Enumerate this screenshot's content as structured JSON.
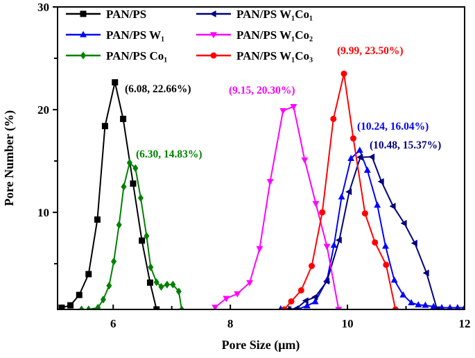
{
  "chart_data": {
    "type": "line",
    "xlabel": "Pore Size (μm)",
    "ylabel": "Pore Number (%)",
    "xlim": [
      5.05,
      12
    ],
    "ylim": [
      0.55,
      30
    ],
    "xticks": [
      6,
      8,
      10,
      12
    ],
    "xminor": [
      7,
      9,
      11
    ],
    "yticks": [
      10,
      20,
      30
    ],
    "yminor": [
      5,
      15,
      25
    ],
    "grid": false,
    "legend_placement": "top-left",
    "series": [
      {
        "name": "PAN/PS",
        "color": "#000000",
        "marker": "square",
        "x": [
          5.12,
          5.27,
          5.42,
          5.58,
          5.73,
          5.86,
          6.03,
          6.17,
          6.34,
          6.49,
          6.63,
          6.74
        ],
        "y": [
          0.72,
          0.95,
          1.96,
          3.99,
          9.3,
          18.4,
          22.66,
          19.1,
          12.8,
          7.25,
          3.16,
          0.55
        ]
      },
      {
        "name": "PAN/PS W₁",
        "color": "#0000ff",
        "marker": "triangle-up",
        "x": [
          8.86,
          9.16,
          9.31,
          9.45,
          9.65,
          9.77,
          9.9,
          10.06,
          10.21,
          10.34,
          10.51,
          10.65,
          10.8,
          10.95,
          11.09,
          11.21,
          11.33,
          11.47,
          11.61,
          11.75,
          11.88,
          12.0
        ],
        "y": [
          0.6,
          0.6,
          0.9,
          1.3,
          3.4,
          6.8,
          11.5,
          15.25,
          16.04,
          14.1,
          10.7,
          6.7,
          3.4,
          1.96,
          1.2,
          1.0,
          0.95,
          0.83,
          0.72,
          0.72,
          0.72,
          0.72
        ]
      },
      {
        "name": "PAN/PS Co₁",
        "color": "#008000",
        "marker": "diamond",
        "x": [
          5.46,
          5.58,
          5.74,
          5.83,
          5.93,
          6.01,
          6.1,
          6.18,
          6.28,
          6.38,
          6.47,
          6.57,
          6.64,
          6.74,
          6.82,
          6.92,
          7.02,
          7.12,
          7.17
        ],
        "y": [
          0.55,
          0.55,
          0.72,
          1.51,
          2.86,
          5.22,
          8.78,
          12.5,
          14.83,
          14.3,
          11.4,
          7.7,
          4.66,
          3.2,
          2.75,
          2.97,
          2.97,
          2.3,
          0.55
        ]
      },
      {
        "name": "PAN/PS W₁Co₁",
        "color": "#000080",
        "marker": "triangle-left",
        "x": [
          9.0,
          9.12,
          9.29,
          9.45,
          9.65,
          9.86,
          10.03,
          10.22,
          10.42,
          10.58,
          10.78,
          10.97,
          11.15,
          11.35,
          11.53
        ],
        "y": [
          0.55,
          0.6,
          1.4,
          1.76,
          3.3,
          7.3,
          12.0,
          15.37,
          15.4,
          13.0,
          10.6,
          8.94,
          7.0,
          4.1,
          0.55
        ]
      },
      {
        "name": "PAN/PS W₁Co₂",
        "color": "#ff00ff",
        "marker": "triangle-down",
        "x": [
          7.74,
          7.93,
          8.12,
          8.33,
          8.5,
          8.68,
          8.9,
          9.08,
          9.27,
          9.46,
          9.65,
          9.85
        ],
        "y": [
          0.76,
          1.62,
          2.07,
          3.16,
          6.47,
          13.0,
          19.9,
          20.3,
          15.1,
          10.86,
          6.69,
          0.55
        ]
      },
      {
        "name": "PAN/PS W₁Co₃",
        "color": "#ff0000",
        "marker": "circle",
        "x": [
          8.92,
          9.04,
          9.21,
          9.39,
          9.57,
          9.76,
          9.94,
          10.1,
          10.3,
          10.47,
          10.66,
          10.82
        ],
        "y": [
          0.55,
          1.33,
          2.41,
          4.78,
          10.0,
          19.1,
          23.5,
          17.2,
          9.9,
          7.07,
          4.89,
          0.55
        ]
      }
    ],
    "annotations": [
      {
        "text": "(6.08, 22.66%)",
        "color": "#000000"
      },
      {
        "text": "(6.30, 14.83%)",
        "color": "#008000"
      },
      {
        "text": "(9.15, 20.30%)",
        "color": "#ff00ff"
      },
      {
        "text": "(9.99, 23.50%)",
        "color": "#ff0000"
      },
      {
        "text": "(10.24, 16.04%)",
        "color": "#0000ff"
      },
      {
        "text": "(10.48, 15.37%)",
        "color": "#000080"
      }
    ]
  }
}
